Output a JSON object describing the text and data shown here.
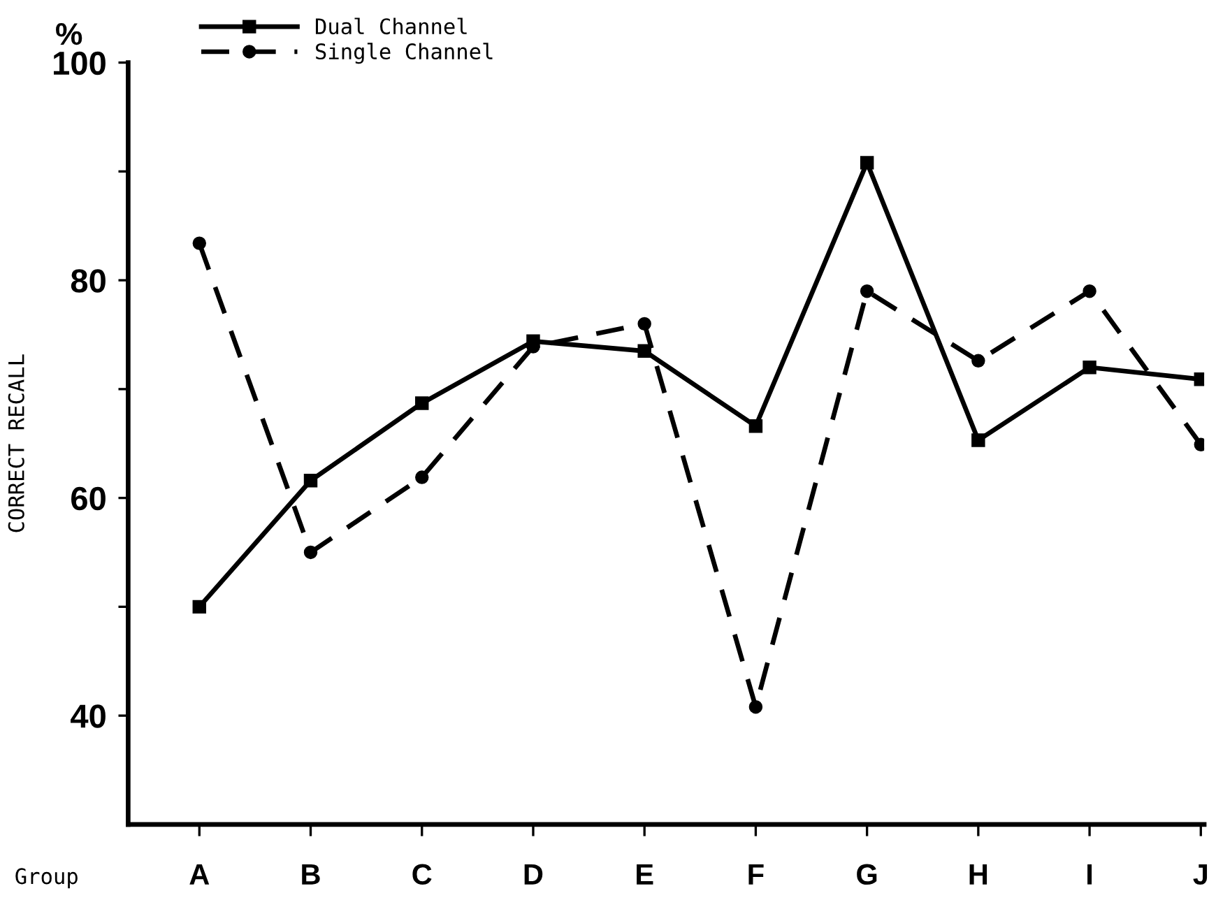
{
  "chart_data": {
    "type": "line",
    "ylabel": "CORRECT RECALL",
    "xlabel": "Group",
    "annotations": [
      "%"
    ],
    "categories": [
      "A",
      "B",
      "C",
      "D",
      "E",
      "F",
      "G",
      "H",
      "I",
      "J"
    ],
    "series": [
      {
        "name": "Dual Channel",
        "color": "#000000",
        "marker": "square",
        "line_style": "solid",
        "values": [
          50,
          61.6,
          68.7,
          74.4,
          73.5,
          66.6,
          90.8,
          65.3,
          72.0,
          70.9
        ]
      },
      {
        "name": "Single Channel",
        "color": "#000000",
        "marker": "circle",
        "line_style": "dashed",
        "values": [
          83.4,
          55.0,
          61.9,
          73.9,
          76.0,
          40.8,
          79.0,
          72.6,
          79.0,
          64.9
        ]
      }
    ],
    "ylim": [
      30,
      100
    ],
    "yticks": [
      40,
      {
        "value": 50,
        "label": null
      },
      60,
      {
        "value": 70,
        "label": null
      },
      80,
      {
        "value": 90,
        "label": null
      },
      100
    ],
    "grid": false,
    "legend": "top left"
  }
}
